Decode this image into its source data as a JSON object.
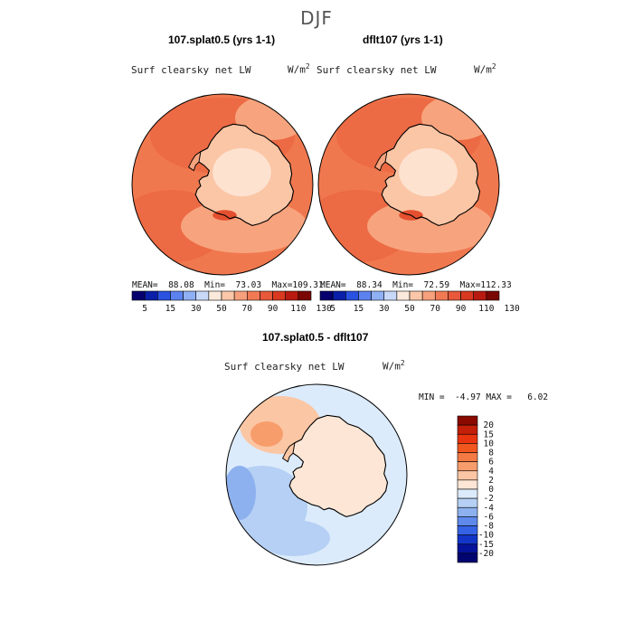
{
  "title": "DJF",
  "panels": [
    {
      "title": "107.splat0.5 (yrs 1-1)",
      "variable": "Surf clearsky net LW",
      "units": "W/m",
      "units_exp": "2",
      "stats": {
        "mean_label": "MEAN=",
        "mean": "88.08",
        "min_label": "Min=",
        "min": "73.03",
        "max_label": "Max=",
        "max": "109.31"
      }
    },
    {
      "title": "dflt107 (yrs 1-1)",
      "variable": "Surf clearsky net LW",
      "units": "W/m",
      "units_exp": "2",
      "stats": {
        "mean_label": "MEAN=",
        "mean": "88.34",
        "min_label": "Min=",
        "min": "72.59",
        "max_label": "Max=",
        "max": "112.33"
      }
    }
  ],
  "shared_colorbar": {
    "labels": [
      "5",
      "15",
      "30",
      "50",
      "70",
      "90",
      "110",
      "130"
    ],
    "colors": [
      "#05006e",
      "#0a1fa8",
      "#2a52e0",
      "#5b82ee",
      "#8fb0f4",
      "#c7d8f8",
      "#fbe9dc",
      "#fbc7a8",
      "#f7a07c",
      "#f17a55",
      "#e8583a",
      "#d8391f",
      "#b91a0f",
      "#7a0704"
    ]
  },
  "diff_panel": {
    "title": "107.splat0.5 - dflt107",
    "variable": "Surf clearsky net LW",
    "units": "W/m",
    "units_exp": "2",
    "stats": {
      "min_label": "MIN =",
      "min": "-4.97",
      "max_label": "MAX =",
      "max": "6.02"
    },
    "colorbar": {
      "labels": [
        "20",
        "15",
        "10",
        "8",
        "6",
        "4",
        "2",
        "0",
        "-2",
        "-4",
        "-6",
        "-8",
        "-10",
        "-15",
        "-20"
      ],
      "colors": [
        "#8a0a00",
        "#c41f08",
        "#e83510",
        "#f2561f",
        "#f47a44",
        "#f79d6c",
        "#fbc6a4",
        "#fde6d6",
        "#dcebfb",
        "#b5d0f4",
        "#8db1ef",
        "#5f8aec",
        "#3662e6",
        "#1235c8",
        "#05129a",
        "#020470"
      ]
    }
  },
  "map_colors": {
    "ocean_abs": "#f0784f",
    "ocean_abs_dark": "#ec6a44",
    "mid_abs": "#f7a47e",
    "land_abs": "#fbc6a6",
    "land_abs_light": "#fde2d0",
    "hot_abs": "#e4502f",
    "diff_ocean": "#dcebfb",
    "diff_neg": "#b5d0f4",
    "diff_neg2": "#8db1ef",
    "diff_land": "#fde6d6",
    "diff_pos": "#fbc6a4",
    "diff_pos2": "#f79d6c"
  }
}
